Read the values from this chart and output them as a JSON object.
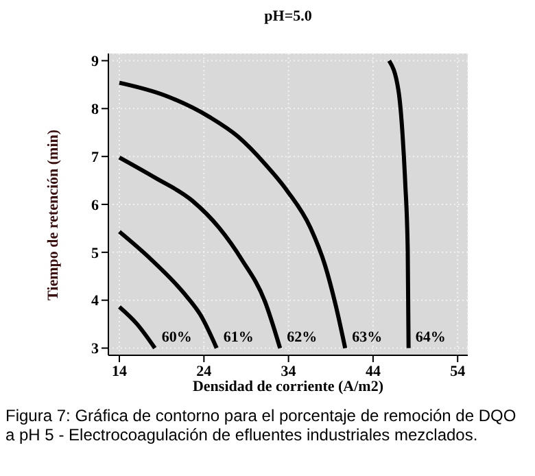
{
  "chart_data": {
    "type": "line",
    "title": "pH=5.0",
    "xlabel": "Densidad de corriente (A/m2)",
    "ylabel": "Tiempo de retención (min)",
    "xlim": [
      12.7,
      55.2
    ],
    "ylim": [
      2.85,
      9.15
    ],
    "xticks": [
      14,
      24,
      34,
      44,
      54
    ],
    "yticks": [
      3,
      4,
      5,
      6,
      7,
      8,
      9
    ],
    "grid": true,
    "marker": "none",
    "line_style": "solid",
    "series": [
      {
        "name": "60%",
        "color": "#000000",
        "x": [
          14,
          16.1,
          18.2
        ],
        "values": [
          3.86,
          3.5,
          3
        ]
      },
      {
        "name": "61%",
        "color": "#000000",
        "x": [
          14,
          17.7,
          22,
          23.6,
          25.5
        ],
        "values": [
          5.43,
          4.86,
          4.07,
          3.69,
          3
        ]
      },
      {
        "name": "62%",
        "color": "#000000",
        "x": [
          14,
          18.2,
          22.6,
          25.8,
          28.5,
          31.2,
          33
        ],
        "values": [
          6.98,
          6.56,
          6.08,
          5.51,
          4.84,
          3.98,
          3
        ]
      },
      {
        "name": "63%",
        "color": "#000000",
        "x": [
          14,
          19.3,
          24.7,
          28,
          31.2,
          33.9,
          36.6,
          38.3,
          39.6,
          40.7
        ],
        "values": [
          8.54,
          8.28,
          7.82,
          7.42,
          6.85,
          6.27,
          5.51,
          4.74,
          3.88,
          3
        ]
      },
      {
        "name": "64%",
        "color": "#000000",
        "x": [
          45.9,
          47,
          47.5,
          47.8,
          48.1,
          48.2
        ],
        "values": [
          9,
          8.38,
          7.42,
          6.46,
          5.03,
          3
        ]
      }
    ],
    "annotations": [
      "Figura 7: Gráfica de contorno para el porcentaje de remoción de DQO a pH 5 - Electrocoagulación de efluentes industriales mezclados."
    ]
  }
}
